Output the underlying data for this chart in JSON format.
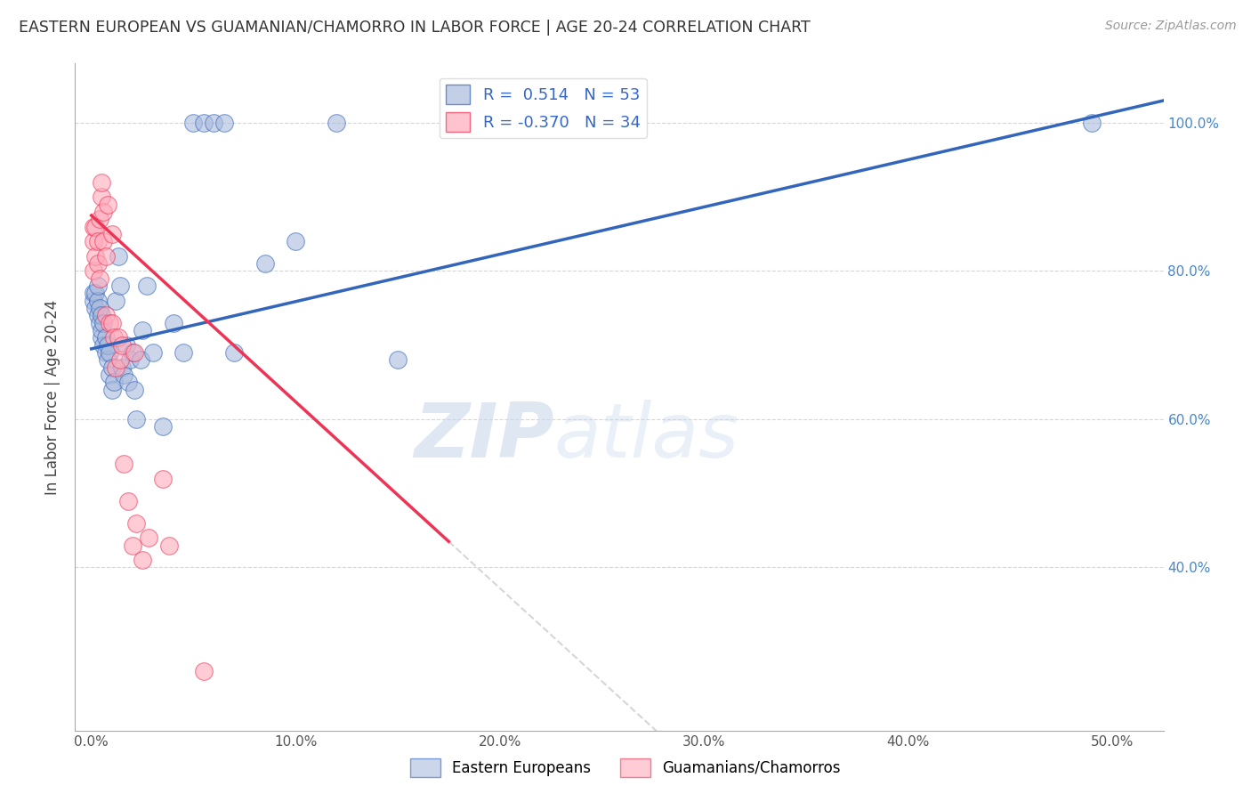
{
  "title": "EASTERN EUROPEAN VS GUAMANIAN/CHAMORRO IN LABOR FORCE | AGE 20-24 CORRELATION CHART",
  "source": "Source: ZipAtlas.com",
  "ylabel": "In Labor Force | Age 20-24",
  "x_ticks": [
    0.0,
    0.1,
    0.2,
    0.3,
    0.4,
    0.5
  ],
  "x_tick_labels": [
    "0.0%",
    "10.0%",
    "20.0%",
    "30.0%",
    "40.0%",
    "50.0%"
  ],
  "y_ticks": [
    0.4,
    0.6,
    0.8,
    1.0
  ],
  "y_tick_labels_right": [
    "40.0%",
    "60.0%",
    "80.0%",
    "100.0%"
  ],
  "xlim": [
    -0.008,
    0.525
  ],
  "ylim": [
    0.18,
    1.08
  ],
  "R_blue": 0.514,
  "N_blue": 53,
  "R_pink": -0.37,
  "N_pink": 34,
  "blue_scatter_x": [
    0.001,
    0.001,
    0.002,
    0.002,
    0.003,
    0.003,
    0.003,
    0.004,
    0.004,
    0.005,
    0.005,
    0.005,
    0.006,
    0.006,
    0.007,
    0.007,
    0.008,
    0.008,
    0.009,
    0.009,
    0.01,
    0.01,
    0.011,
    0.012,
    0.013,
    0.014,
    0.015,
    0.016,
    0.017,
    0.018,
    0.019,
    0.02,
    0.021,
    0.022,
    0.024,
    0.025,
    0.027,
    0.03,
    0.035,
    0.04,
    0.045,
    0.05,
    0.055,
    0.06,
    0.065,
    0.07,
    0.085,
    0.1,
    0.12,
    0.15,
    0.19,
    0.23,
    0.49
  ],
  "blue_scatter_y": [
    0.76,
    0.77,
    0.75,
    0.77,
    0.74,
    0.76,
    0.78,
    0.73,
    0.75,
    0.71,
    0.72,
    0.74,
    0.7,
    0.73,
    0.69,
    0.71,
    0.68,
    0.7,
    0.66,
    0.69,
    0.64,
    0.67,
    0.65,
    0.76,
    0.82,
    0.78,
    0.67,
    0.66,
    0.7,
    0.65,
    0.68,
    0.69,
    0.64,
    0.6,
    0.68,
    0.72,
    0.78,
    0.69,
    0.59,
    0.73,
    0.69,
    1.0,
    1.0,
    1.0,
    1.0,
    0.69,
    0.81,
    0.84,
    1.0,
    0.68,
    1.0,
    1.0,
    1.0
  ],
  "pink_scatter_x": [
    0.001,
    0.001,
    0.001,
    0.002,
    0.002,
    0.003,
    0.003,
    0.004,
    0.004,
    0.005,
    0.005,
    0.006,
    0.006,
    0.007,
    0.007,
    0.008,
    0.009,
    0.01,
    0.01,
    0.011,
    0.012,
    0.013,
    0.014,
    0.015,
    0.016,
    0.018,
    0.02,
    0.021,
    0.022,
    0.025,
    0.028,
    0.035,
    0.038,
    0.055
  ],
  "pink_scatter_y": [
    0.8,
    0.84,
    0.86,
    0.82,
    0.86,
    0.81,
    0.84,
    0.79,
    0.87,
    0.9,
    0.92,
    0.84,
    0.88,
    0.82,
    0.74,
    0.89,
    0.73,
    0.73,
    0.85,
    0.71,
    0.67,
    0.71,
    0.68,
    0.7,
    0.54,
    0.49,
    0.43,
    0.69,
    0.46,
    0.41,
    0.44,
    0.52,
    0.43,
    0.26
  ],
  "blue_line_x0": 0.0,
  "blue_line_x1": 0.525,
  "blue_line_y0": 0.695,
  "blue_line_y1": 1.03,
  "pink_line_solid_x0": 0.0,
  "pink_line_solid_x1": 0.175,
  "pink_line_y0": 0.875,
  "pink_line_y1": 0.435,
  "pink_line_dash_x0": 0.175,
  "pink_line_dash_x1": 0.525,
  "watermark_zip": "ZIP",
  "watermark_atlas": "atlas",
  "bg_color": "#ffffff",
  "blue_color": "#aabbdd",
  "pink_color": "#ffaabb",
  "blue_line_color": "#3366bb",
  "pink_line_color": "#ee3355",
  "grid_color": "#cccccc",
  "legend_label_blue": "Eastern Europeans",
  "legend_label_pink": "Guamanians/Chamorros"
}
